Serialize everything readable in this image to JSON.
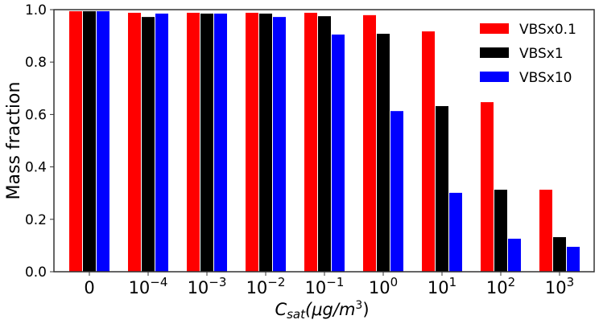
{
  "chart_data": {
    "type": "bar",
    "title": "",
    "xlabel": {
      "main": "C",
      "sub": "sat",
      "rest": "(μg/m",
      "sup": "3",
      "close": ")"
    },
    "ylabel": "Mass fraction",
    "ylim": [
      0,
      1
    ],
    "yticks": [
      "0.0",
      "0.2",
      "0.4",
      "0.6",
      "0.8",
      "1.0"
    ],
    "categories": [
      {
        "base": "0",
        "exp": ""
      },
      {
        "base": "10",
        "exp": "−4"
      },
      {
        "base": "10",
        "exp": "−3"
      },
      {
        "base": "10",
        "exp": "−2"
      },
      {
        "base": "10",
        "exp": "−1"
      },
      {
        "base": "10",
        "exp": "0"
      },
      {
        "base": "10",
        "exp": "1"
      },
      {
        "base": "10",
        "exp": "2"
      },
      {
        "base": "10",
        "exp": "3"
      }
    ],
    "legend_position": "top-right",
    "grid": false,
    "series": [
      {
        "name": "VBSx0.1",
        "color": "#ff0000",
        "values": [
          0.994,
          0.988,
          0.988,
          0.988,
          0.988,
          0.979,
          0.917,
          0.647,
          0.313
        ]
      },
      {
        "name": "VBSx1",
        "color": "#000000",
        "values": [
          0.994,
          0.972,
          0.985,
          0.985,
          0.975,
          0.908,
          0.632,
          0.313,
          0.132
        ]
      },
      {
        "name": "VBSx10",
        "color": "#0000ff",
        "values": [
          0.994,
          0.985,
          0.985,
          0.972,
          0.905,
          0.613,
          0.301,
          0.126,
          0.095
        ]
      }
    ]
  }
}
